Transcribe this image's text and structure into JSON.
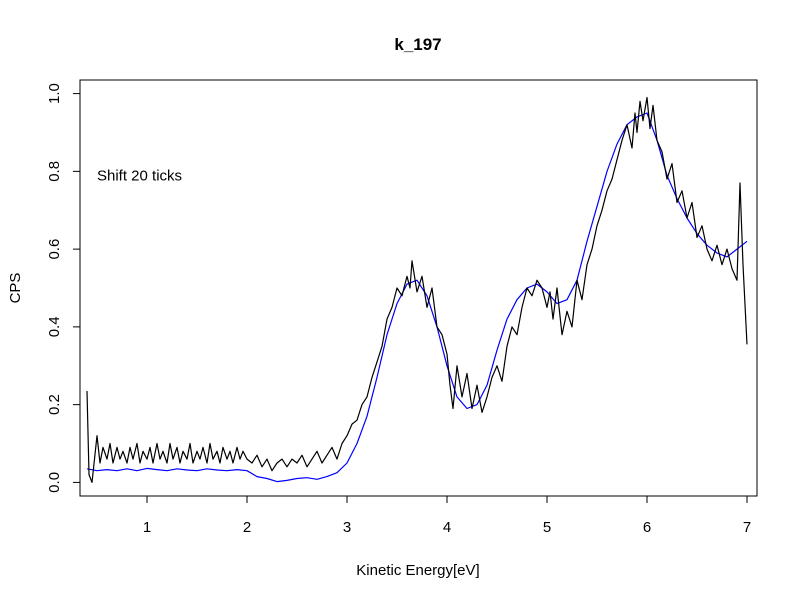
{
  "chart_data": {
    "type": "line",
    "title": "k_197",
    "xlabel": "Kinetic Energy[eV]",
    "ylabel": "CPS",
    "xlim": [
      0.33,
      7.1
    ],
    "ylim": [
      -0.035,
      1.035
    ],
    "xticks": [
      1,
      2,
      3,
      4,
      5,
      6,
      7
    ],
    "yticks": [
      0.0,
      0.2,
      0.4,
      0.6,
      0.8,
      1.0
    ],
    "xtick_labels": [
      "1",
      "2",
      "3",
      "4",
      "5",
      "6",
      "7"
    ],
    "ytick_labels": [
      "0.0",
      "0.2",
      "0.4",
      "0.6",
      "0.8",
      "1.0"
    ],
    "annotation": {
      "text": "Shift 20 ticks",
      "x": 0.5,
      "y": 0.79
    },
    "grid": false,
    "series": [
      {
        "color": "#000000",
        "x": [
          0.4,
          0.42,
          0.45,
          0.5,
          0.53,
          0.56,
          0.6,
          0.63,
          0.66,
          0.7,
          0.73,
          0.76,
          0.8,
          0.83,
          0.86,
          0.9,
          0.93,
          0.96,
          1.0,
          1.03,
          1.06,
          1.1,
          1.13,
          1.16,
          1.2,
          1.23,
          1.26,
          1.3,
          1.33,
          1.36,
          1.4,
          1.43,
          1.46,
          1.5,
          1.53,
          1.56,
          1.6,
          1.63,
          1.66,
          1.7,
          1.73,
          1.76,
          1.8,
          1.83,
          1.86,
          1.9,
          1.93,
          1.96,
          2.0,
          2.05,
          2.1,
          2.15,
          2.2,
          2.25,
          2.3,
          2.35,
          2.4,
          2.45,
          2.5,
          2.55,
          2.6,
          2.65,
          2.7,
          2.75,
          2.8,
          2.85,
          2.9,
          2.95,
          3.0,
          3.05,
          3.1,
          3.15,
          3.2,
          3.25,
          3.3,
          3.35,
          3.4,
          3.45,
          3.5,
          3.55,
          3.6,
          3.63,
          3.65,
          3.7,
          3.75,
          3.8,
          3.85,
          3.9,
          3.95,
          4.0,
          4.03,
          4.06,
          4.1,
          4.15,
          4.2,
          4.25,
          4.3,
          4.35,
          4.4,
          4.45,
          4.5,
          4.55,
          4.6,
          4.65,
          4.7,
          4.75,
          4.8,
          4.85,
          4.9,
          4.95,
          5.0,
          5.03,
          5.06,
          5.1,
          5.15,
          5.2,
          5.25,
          5.3,
          5.35,
          5.4,
          5.45,
          5.5,
          5.55,
          5.6,
          5.65,
          5.7,
          5.75,
          5.8,
          5.85,
          5.88,
          5.9,
          5.93,
          5.96,
          6.0,
          6.03,
          6.06,
          6.1,
          6.15,
          6.2,
          6.25,
          6.3,
          6.35,
          6.4,
          6.45,
          6.5,
          6.55,
          6.6,
          6.65,
          6.7,
          6.75,
          6.8,
          6.85,
          6.9,
          6.93,
          6.96,
          7.0
        ],
        "y": [
          0.235,
          0.02,
          0.0,
          0.12,
          0.05,
          0.09,
          0.06,
          0.1,
          0.05,
          0.09,
          0.06,
          0.08,
          0.05,
          0.09,
          0.06,
          0.1,
          0.05,
          0.08,
          0.06,
          0.09,
          0.05,
          0.1,
          0.06,
          0.08,
          0.05,
          0.1,
          0.06,
          0.09,
          0.05,
          0.08,
          0.06,
          0.1,
          0.05,
          0.08,
          0.06,
          0.09,
          0.05,
          0.1,
          0.06,
          0.08,
          0.05,
          0.09,
          0.06,
          0.08,
          0.05,
          0.09,
          0.06,
          0.08,
          0.06,
          0.05,
          0.07,
          0.04,
          0.06,
          0.03,
          0.05,
          0.06,
          0.04,
          0.06,
          0.05,
          0.07,
          0.04,
          0.06,
          0.08,
          0.05,
          0.07,
          0.09,
          0.06,
          0.1,
          0.12,
          0.15,
          0.16,
          0.2,
          0.22,
          0.27,
          0.31,
          0.35,
          0.42,
          0.45,
          0.5,
          0.48,
          0.53,
          0.5,
          0.57,
          0.49,
          0.53,
          0.45,
          0.5,
          0.4,
          0.38,
          0.33,
          0.25,
          0.19,
          0.3,
          0.22,
          0.28,
          0.19,
          0.25,
          0.18,
          0.22,
          0.27,
          0.3,
          0.26,
          0.35,
          0.4,
          0.38,
          0.45,
          0.5,
          0.48,
          0.52,
          0.5,
          0.45,
          0.49,
          0.42,
          0.5,
          0.38,
          0.44,
          0.4,
          0.52,
          0.47,
          0.56,
          0.6,
          0.66,
          0.7,
          0.75,
          0.78,
          0.83,
          0.88,
          0.92,
          0.86,
          0.95,
          0.9,
          0.98,
          0.93,
          0.99,
          0.91,
          0.97,
          0.88,
          0.85,
          0.78,
          0.82,
          0.72,
          0.75,
          0.68,
          0.72,
          0.63,
          0.66,
          0.6,
          0.57,
          0.61,
          0.56,
          0.6,
          0.55,
          0.52,
          0.77,
          0.56,
          0.355
        ]
      },
      {
        "color": "#0000ff",
        "x": [
          0.4,
          0.5,
          0.6,
          0.7,
          0.8,
          0.9,
          1.0,
          1.1,
          1.2,
          1.3,
          1.4,
          1.5,
          1.6,
          1.7,
          1.8,
          1.9,
          2.0,
          2.1,
          2.2,
          2.3,
          2.4,
          2.5,
          2.6,
          2.7,
          2.8,
          2.9,
          3.0,
          3.1,
          3.2,
          3.3,
          3.4,
          3.5,
          3.6,
          3.7,
          3.8,
          3.9,
          4.0,
          4.1,
          4.2,
          4.3,
          4.4,
          4.5,
          4.6,
          4.7,
          4.8,
          4.9,
          5.0,
          5.1,
          5.2,
          5.3,
          5.4,
          5.5,
          5.6,
          5.7,
          5.8,
          5.9,
          6.0,
          6.1,
          6.2,
          6.3,
          6.4,
          6.5,
          6.6,
          6.7,
          6.8,
          6.9,
          7.0
        ],
        "y": [
          0.035,
          0.03,
          0.033,
          0.03,
          0.035,
          0.03,
          0.036,
          0.033,
          0.03,
          0.035,
          0.032,
          0.03,
          0.035,
          0.032,
          0.03,
          0.033,
          0.03,
          0.015,
          0.01,
          0.002,
          0.005,
          0.01,
          0.012,
          0.008,
          0.015,
          0.025,
          0.05,
          0.1,
          0.17,
          0.27,
          0.38,
          0.46,
          0.51,
          0.52,
          0.48,
          0.4,
          0.3,
          0.22,
          0.19,
          0.2,
          0.25,
          0.34,
          0.42,
          0.47,
          0.5,
          0.51,
          0.49,
          0.46,
          0.47,
          0.52,
          0.62,
          0.71,
          0.8,
          0.87,
          0.92,
          0.94,
          0.95,
          0.88,
          0.79,
          0.73,
          0.68,
          0.64,
          0.61,
          0.59,
          0.58,
          0.6,
          0.62
        ]
      }
    ]
  }
}
